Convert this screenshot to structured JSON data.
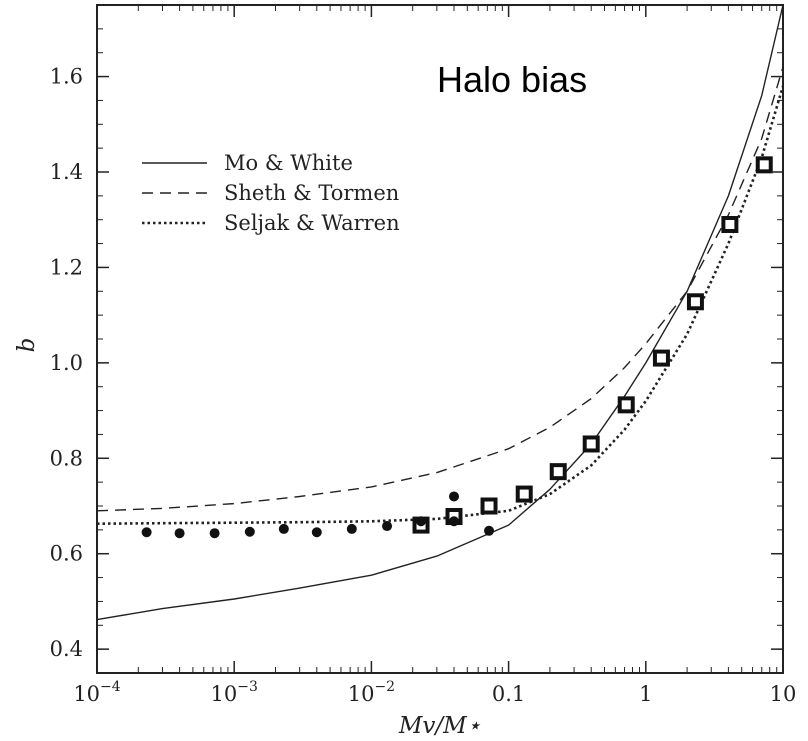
{
  "chart_data": {
    "type": "line",
    "title": "Halo bias",
    "xlabel": "Mv/M⋆",
    "ylabel": "b",
    "xscale": "log",
    "xlim": [
      0.0001,
      10
    ],
    "ylim": [
      0.35,
      1.75
    ],
    "x_ticks": [
      {
        "value": 0.0001,
        "base": "10",
        "exp": "−4"
      },
      {
        "value": 0.001,
        "base": "10",
        "exp": "−3"
      },
      {
        "value": 0.01,
        "base": "10",
        "exp": "−2"
      },
      {
        "value": 0.1,
        "base": "0.1",
        "exp": ""
      },
      {
        "value": 1,
        "base": "1",
        "exp": ""
      },
      {
        "value": 10,
        "base": "10",
        "exp": ""
      }
    ],
    "y_ticks": [
      {
        "value": 0.4,
        "label": "0.4"
      },
      {
        "value": 0.6,
        "label": "0.6"
      },
      {
        "value": 0.8,
        "label": "0.8"
      },
      {
        "value": 1.0,
        "label": "1.0"
      },
      {
        "value": 1.2,
        "label": "1.2"
      },
      {
        "value": 1.4,
        "label": "1.4"
      },
      {
        "value": 1.6,
        "label": "1.6"
      }
    ],
    "legend_position": "upper-left",
    "series": [
      {
        "name": "Mo & White",
        "style": "solid",
        "x": [
          0.0001,
          0.0003,
          0.001,
          0.003,
          0.01,
          0.03,
          0.1,
          0.2,
          0.4,
          0.7,
          1,
          2,
          4,
          7,
          10
        ],
        "y": [
          0.462,
          0.485,
          0.505,
          0.528,
          0.555,
          0.595,
          0.66,
          0.735,
          0.83,
          0.93,
          1.0,
          1.15,
          1.35,
          1.56,
          1.75
        ]
      },
      {
        "name": "Sheth & Tormen",
        "style": "dashed",
        "x": [
          0.0001,
          0.0003,
          0.001,
          0.003,
          0.01,
          0.03,
          0.1,
          0.2,
          0.4,
          0.7,
          1,
          2,
          4,
          7,
          10
        ],
        "y": [
          0.69,
          0.695,
          0.705,
          0.72,
          0.74,
          0.77,
          0.82,
          0.865,
          0.925,
          0.99,
          1.04,
          1.15,
          1.31,
          1.47,
          1.62
        ]
      },
      {
        "name": "Seljak & Warren",
        "style": "dotted",
        "x": [
          0.0001,
          0.0003,
          0.001,
          0.003,
          0.01,
          0.03,
          0.1,
          0.2,
          0.4,
          0.7,
          1,
          2,
          4,
          7,
          10
        ],
        "y": [
          0.663,
          0.664,
          0.665,
          0.666,
          0.668,
          0.673,
          0.69,
          0.725,
          0.785,
          0.86,
          0.92,
          1.06,
          1.25,
          1.43,
          1.58
        ]
      },
      {
        "name": "",
        "style": "markers-square",
        "x": [
          0.023,
          0.04,
          0.072,
          0.13,
          0.23,
          0.4,
          0.72,
          1.3,
          2.3,
          4.1,
          7.3
        ],
        "y": [
          0.66,
          0.678,
          0.7,
          0.725,
          0.772,
          0.83,
          0.912,
          1.01,
          1.128,
          1.29,
          1.415
        ]
      },
      {
        "name": "",
        "style": "markers-circle",
        "x": [
          0.00023,
          0.0004,
          0.00072,
          0.0013,
          0.0023,
          0.004,
          0.0072,
          0.013,
          0.023,
          0.04,
          0.04,
          0.072
        ],
        "y": [
          0.645,
          0.643,
          0.643,
          0.646,
          0.652,
          0.645,
          0.652,
          0.658,
          0.668,
          0.668,
          0.72,
          0.648
        ]
      }
    ]
  }
}
